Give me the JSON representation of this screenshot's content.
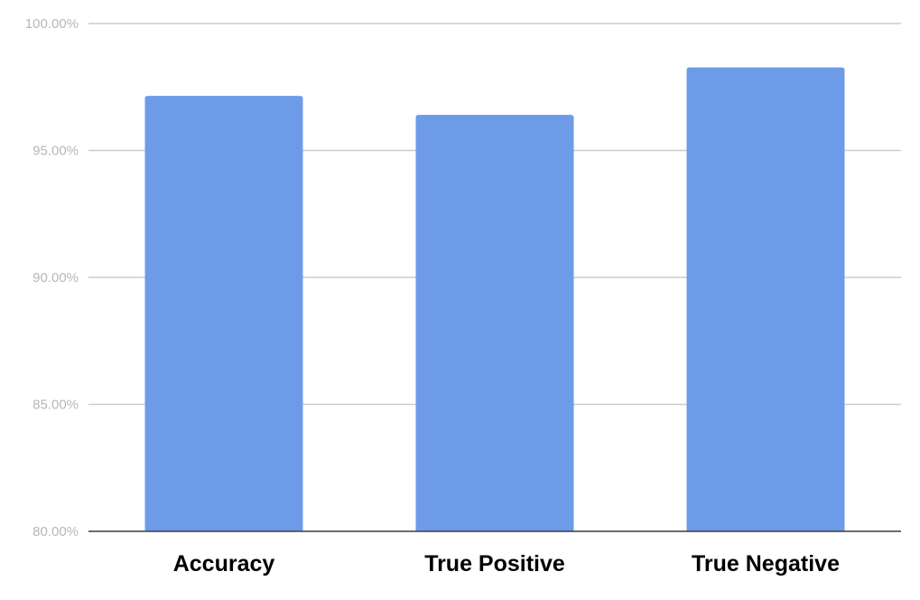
{
  "chart_data": {
    "type": "bar",
    "title": "",
    "xlabel": "",
    "ylabel": "",
    "categories": [
      "Accuracy",
      "True Positive",
      "True Negative"
    ],
    "values": [
      97.15,
      96.4,
      98.27
    ],
    "ylim": [
      80,
      100
    ],
    "yticks": [
      80,
      85,
      90,
      95,
      100
    ],
    "ytick_labels": [
      "80.00%",
      "85.00%",
      "90.00%",
      "95.00%",
      "100.00%"
    ],
    "grid": true,
    "legend": "none",
    "colors": {
      "bar": "#6d9be8",
      "grid": "#cccccc",
      "tick_text": "#b7b7b7",
      "category_text": "#000000"
    }
  }
}
